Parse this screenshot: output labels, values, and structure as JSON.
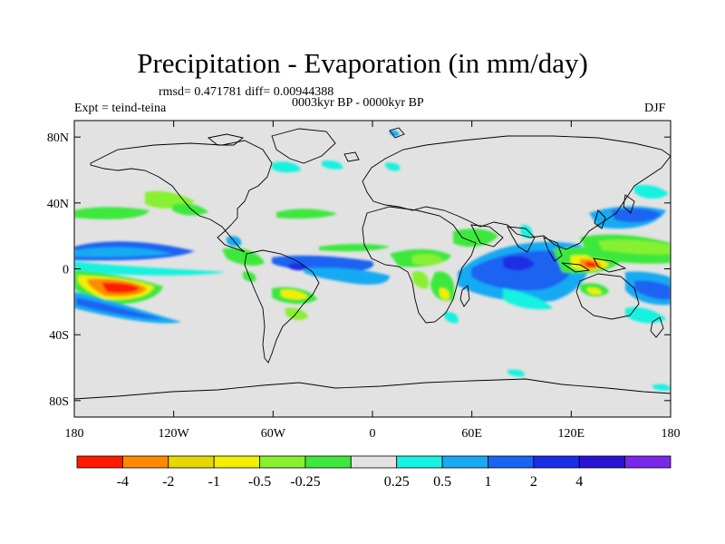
{
  "figure": {
    "title": "Precipitation - Evaporation (in mm/day)",
    "stats": "rmsd= 0.471781  diff= 0.00944388",
    "subtitle": "0003kyr BP - 0000kyr BP",
    "experiment": "Expt = teind-teina",
    "season": "DJF"
  },
  "map": {
    "projection": "cylindrical equidistant",
    "lon_range": [
      -180,
      180
    ],
    "lat_range": [
      -90,
      90
    ],
    "lat_ticks": [
      {
        "label": "80N",
        "lat": 80
      },
      {
        "label": "40N",
        "lat": 40
      },
      {
        "label": "0",
        "lat": 0
      },
      {
        "label": "40S",
        "lat": -40
      },
      {
        "label": "80S",
        "lat": -80
      }
    ],
    "lon_ticks": [
      {
        "label": "180",
        "lon": -180
      },
      {
        "label": "120W",
        "lon": -120
      },
      {
        "label": "60W",
        "lon": -60
      },
      {
        "label": "0",
        "lon": 0
      },
      {
        "label": "60E",
        "lon": 60
      },
      {
        "label": "120E",
        "lon": 120
      },
      {
        "label": "180",
        "lon": 180
      }
    ]
  },
  "colorbar": {
    "colors": [
      "#ff1a00",
      "#ff8a00",
      "#e6d800",
      "#f0f000",
      "#88f030",
      "#3ee83e",
      "#e2e2e2",
      "#19f2e0",
      "#18aaf2",
      "#1a64f2",
      "#1a2ee6",
      "#2a14d4",
      "#7a28e8"
    ],
    "labels": [
      "-4",
      "-2",
      "-1",
      "-0.5",
      "-0.25",
      "0.25",
      "0.5",
      "1",
      "2",
      "4"
    ]
  }
}
